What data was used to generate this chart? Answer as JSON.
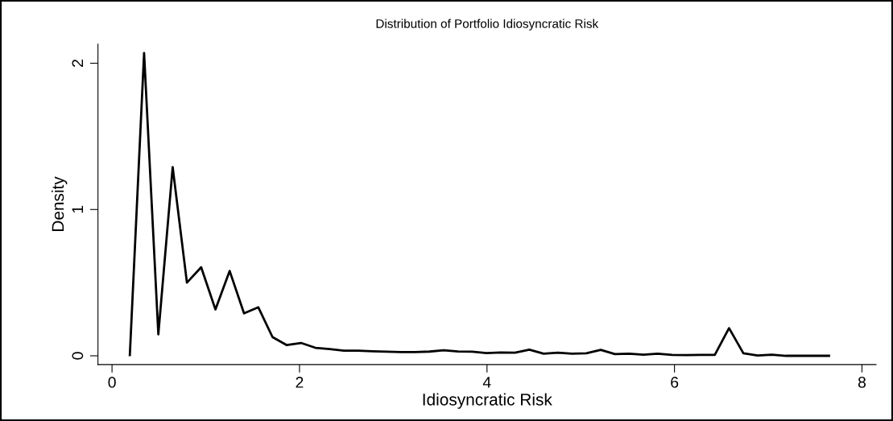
{
  "chart_data": {
    "type": "line",
    "title": "Distribution of Portfolio Idiosyncratic Risk",
    "xlabel": "Idiosyncratic Risk",
    "ylabel": "Density",
    "x": [
      0.19,
      0.342,
      0.494,
      0.647,
      0.799,
      0.951,
      1.103,
      1.255,
      1.408,
      1.56,
      1.712,
      1.864,
      2.016,
      2.169,
      2.321,
      2.473,
      2.625,
      2.777,
      2.93,
      3.082,
      3.234,
      3.386,
      3.538,
      3.691,
      3.843,
      3.995,
      4.147,
      4.299,
      4.452,
      4.604,
      4.756,
      4.908,
      5.06,
      5.213,
      5.365,
      5.517,
      5.669,
      5.821,
      5.974,
      6.126,
      6.278,
      6.43,
      6.582,
      6.735,
      6.887,
      7.039,
      7.191,
      7.343,
      7.496,
      7.648
    ],
    "series": [
      {
        "color": "#000000",
        "values": [
          0.005,
          2.07,
          0.147,
          1.29,
          0.5,
          0.605,
          0.317,
          0.58,
          0.29,
          0.332,
          0.128,
          0.073,
          0.088,
          0.055,
          0.046,
          0.035,
          0.035,
          0.031,
          0.028,
          0.026,
          0.026,
          0.029,
          0.038,
          0.03,
          0.028,
          0.019,
          0.023,
          0.021,
          0.042,
          0.015,
          0.021,
          0.014,
          0.017,
          0.041,
          0.012,
          0.015,
          0.008,
          0.014,
          0.006,
          0.005,
          0.006,
          0.006,
          0.189,
          0.017,
          0.002,
          0.008,
          0.0,
          0.0,
          0.0,
          0.0
        ]
      }
    ],
    "xlim": [
      -0.15,
      8.15
    ],
    "ylim": [
      -0.06,
      2.13
    ],
    "xticks": [
      0,
      2,
      4,
      6,
      8
    ],
    "yticks": [
      0,
      1,
      2
    ],
    "grid": false,
    "marker": "none",
    "line_style": "solid"
  }
}
